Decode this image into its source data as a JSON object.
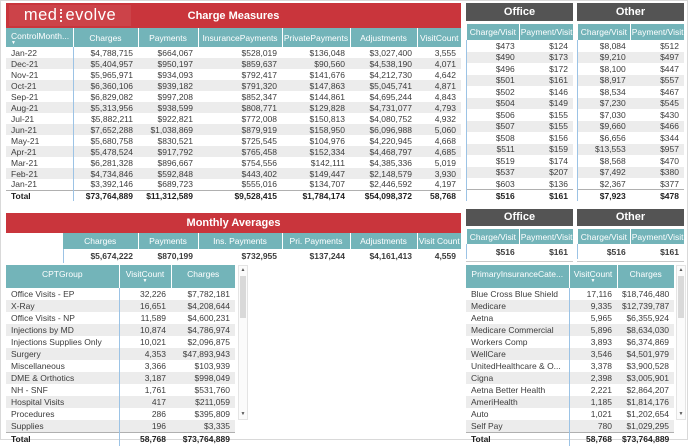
{
  "logo": {
    "part1": "med",
    "part2": "evolve"
  },
  "charge_measures": {
    "title": "Charge Measures",
    "columns": [
      "ControlMonth...",
      "Charges",
      "Payments",
      "InsurancePayments",
      "PrivatePayments",
      "Adjustments",
      "VisitCount"
    ],
    "rows": [
      [
        "Jan-22",
        "$4,788,715",
        "$664,067",
        "$528,019",
        "$136,048",
        "$3,027,400",
        "3,555"
      ],
      [
        "Dec-21",
        "$5,404,957",
        "$950,197",
        "$859,637",
        "$90,560",
        "$4,538,190",
        "4,071"
      ],
      [
        "Nov-21",
        "$5,965,971",
        "$934,093",
        "$792,417",
        "$141,676",
        "$4,212,730",
        "4,642"
      ],
      [
        "Oct-21",
        "$6,360,106",
        "$939,182",
        "$791,320",
        "$147,863",
        "$5,045,741",
        "4,871"
      ],
      [
        "Sep-21",
        "$6,829,082",
        "$997,208",
        "$852,347",
        "$144,861",
        "$4,695,244",
        "4,843"
      ],
      [
        "Aug-21",
        "$5,313,956",
        "$938,599",
        "$808,771",
        "$129,828",
        "$4,731,077",
        "4,793"
      ],
      [
        "Jul-21",
        "$5,882,211",
        "$922,821",
        "$772,008",
        "$150,813",
        "$4,080,752",
        "4,932"
      ],
      [
        "Jun-21",
        "$7,652,288",
        "$1,038,869",
        "$879,919",
        "$158,950",
        "$6,096,988",
        "5,060"
      ],
      [
        "May-21",
        "$5,680,758",
        "$830,521",
        "$725,545",
        "$104,976",
        "$4,220,945",
        "4,668"
      ],
      [
        "Apr-21",
        "$5,478,524",
        "$917,792",
        "$765,458",
        "$152,334",
        "$4,468,797",
        "4,685"
      ],
      [
        "Mar-21",
        "$6,281,328",
        "$896,667",
        "$754,556",
        "$142,111",
        "$4,385,336",
        "5,019"
      ],
      [
        "Feb-21",
        "$4,734,846",
        "$592,848",
        "$443,402",
        "$149,447",
        "$2,148,579",
        "3,930"
      ],
      [
        "Jan-21",
        "$3,392,146",
        "$689,723",
        "$555,016",
        "$134,707",
        "$2,446,592",
        "4,197"
      ]
    ],
    "total": [
      "Total",
      "$73,764,889",
      "$11,312,589",
      "$9,528,415",
      "$1,784,174",
      "$54,098,372",
      "58,768"
    ]
  },
  "office_other_top": {
    "office_title": "Office",
    "other_title": "Other",
    "columns": [
      "Charge/Visit",
      "Payment/Visit"
    ],
    "office_rows": [
      [
        "$473",
        "$124"
      ],
      [
        "$490",
        "$173"
      ],
      [
        "$496",
        "$172"
      ],
      [
        "$501",
        "$161"
      ],
      [
        "$502",
        "$146"
      ],
      [
        "$504",
        "$149"
      ],
      [
        "$506",
        "$155"
      ],
      [
        "$507",
        "$155"
      ],
      [
        "$508",
        "$156"
      ],
      [
        "$511",
        "$159"
      ],
      [
        "$519",
        "$174"
      ],
      [
        "$537",
        "$207"
      ],
      [
        "$603",
        "$136"
      ]
    ],
    "office_total": [
      "$516",
      "$161"
    ],
    "other_rows": [
      [
        "$8,084",
        "$512"
      ],
      [
        "$9,210",
        "$497"
      ],
      [
        "$8,100",
        "$447"
      ],
      [
        "$8,917",
        "$557"
      ],
      [
        "$8,534",
        "$467"
      ],
      [
        "$7,230",
        "$545"
      ],
      [
        "$7,030",
        "$430"
      ],
      [
        "$9,660",
        "$466"
      ],
      [
        "$6,656",
        "$344"
      ],
      [
        "$13,553",
        "$957"
      ],
      [
        "$8,568",
        "$470"
      ],
      [
        "$7,492",
        "$380"
      ],
      [
        "$2,367",
        "$377"
      ]
    ],
    "other_total": [
      "$7,923",
      "$478"
    ]
  },
  "monthly_averages": {
    "title": "Monthly Averages",
    "columns": [
      "Charges",
      "Payments",
      "Ins. Payments",
      "Pri. Payments",
      "Adjustments",
      "Visit Count"
    ],
    "values": [
      "$5,674,222",
      "$870,199",
      "$732,955",
      "$137,244",
      "$4,161,413",
      "4,559"
    ]
  },
  "office_other_mid": {
    "office_title": "Office",
    "other_title": "Other",
    "columns": [
      "Charge/Visit",
      "Payment/Visit"
    ],
    "office_values": [
      "$516",
      "$161"
    ],
    "other_values": [
      "$516",
      "$161"
    ]
  },
  "cpt_table": {
    "columns": [
      "CPTGroup",
      "VisitCount",
      "Charges"
    ],
    "rows": [
      [
        "Office Visits - EP",
        "32,226",
        "$7,782,181"
      ],
      [
        "X-Ray",
        "16,651",
        "$4,208,644"
      ],
      [
        "Office Visits - NP",
        "11,589",
        "$4,600,231"
      ],
      [
        "Injections by MD",
        "10,874",
        "$4,786,974"
      ],
      [
        "Injections Supplies Only",
        "10,021",
        "$2,096,875"
      ],
      [
        "Surgery",
        "4,353",
        "$47,893,943"
      ],
      [
        "Miscellaneous",
        "3,366",
        "$103,939"
      ],
      [
        "DME & Orthotics",
        "3,187",
        "$998,049"
      ],
      [
        "NH - SNF",
        "1,761",
        "$531,760"
      ],
      [
        "Hospital Visits",
        "417",
        "$211,059"
      ],
      [
        "Procedures",
        "286",
        "$395,809"
      ],
      [
        "Supplies",
        "196",
        "$3,335"
      ]
    ],
    "total": [
      "Total",
      "58,768",
      "$73,764,889"
    ]
  },
  "insurance_table": {
    "columns": [
      "PrimaryInsuranceCate...",
      "VisitCount",
      "Charges"
    ],
    "rows": [
      [
        "Blue Cross Blue Shield",
        "17,116",
        "$18,746,480"
      ],
      [
        "Medicare",
        "9,335",
        "$12,739,787"
      ],
      [
        "Aetna",
        "5,965",
        "$6,355,924"
      ],
      [
        "Medicare Commercial",
        "5,896",
        "$8,634,030"
      ],
      [
        "Workers Comp",
        "3,893",
        "$6,374,869"
      ],
      [
        "WellCare",
        "3,546",
        "$4,501,979"
      ],
      [
        "UnitedHealthcare & O...",
        "3,378",
        "$3,900,528"
      ],
      [
        "Cigna",
        "2,398",
        "$3,005,901"
      ],
      [
        "Aetna Better Health",
        "2,221",
        "$2,864,207"
      ],
      [
        "AmeriHealth",
        "1,185",
        "$1,814,176"
      ],
      [
        "Auto",
        "1,021",
        "$1,202,654"
      ],
      [
        "Self Pay",
        "780",
        "$1,029,295"
      ]
    ],
    "total": [
      "Total",
      "58,768",
      "$73,764,889"
    ]
  },
  "colors": {
    "brand_red": "#c9353c",
    "header_teal": "#73b4b9",
    "header_dark": "#545454",
    "alt_row": "#ececec",
    "separator_blue": "#9cc3e5"
  }
}
